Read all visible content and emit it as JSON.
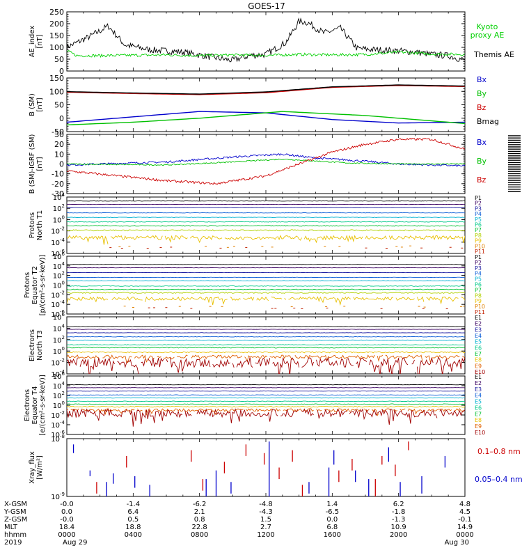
{
  "title": "GOES-17",
  "chart_data": [
    {
      "panel": "ae_index",
      "type": "line",
      "ylabel_lines": [
        "AE_index",
        "[nT]"
      ],
      "ylim": [
        0,
        250
      ],
      "yticks": [
        "0",
        "50",
        "100",
        "150",
        "200",
        "250"
      ],
      "legend": [
        {
          "text": "Kyoto",
          "color": "#00d000"
        },
        {
          "text": "proxy AE",
          "color": "#00d000"
        },
        {
          "text": "Themis AE",
          "color": "#000000"
        }
      ],
      "series": [
        {
          "name": "Themis AE",
          "color": "#000000",
          "kind": "noisy",
          "anchors": [
            [
              0,
              100
            ],
            [
              1.5,
              150
            ],
            [
              2.5,
              190
            ],
            [
              3.5,
              110
            ],
            [
              5,
              90
            ],
            [
              7,
              80
            ],
            [
              9,
              55
            ],
            [
              10,
              45
            ],
            [
              11,
              65
            ],
            [
              12,
              70
            ],
            [
              13.2,
              120
            ],
            [
              14,
              210
            ],
            [
              14.5,
              205
            ],
            [
              15.5,
              160
            ],
            [
              16.5,
              180
            ],
            [
              17.5,
              95
            ],
            [
              18.5,
              90
            ],
            [
              20,
              85
            ],
            [
              21,
              80
            ],
            [
              22,
              70
            ],
            [
              23,
              65
            ],
            [
              24,
              45
            ]
          ],
          "noise": 14
        },
        {
          "name": "Kyoto proxy AE",
          "color": "#00d000",
          "kind": "noisy",
          "anchors": [
            [
              0,
              85
            ],
            [
              0.6,
              65
            ],
            [
              2,
              65
            ],
            [
              6,
              68
            ],
            [
              8,
              65
            ],
            [
              10,
              68
            ],
            [
              12,
              66
            ],
            [
              14,
              70
            ],
            [
              16,
              68
            ],
            [
              18,
              70
            ],
            [
              20,
              80
            ],
            [
              22,
              72
            ],
            [
              24,
              70
            ]
          ],
          "noise": 6
        }
      ]
    },
    {
      "panel": "b_sm",
      "type": "line",
      "ylabel_lines": [
        "B (SM)",
        "[nT]"
      ],
      "ylim": [
        -50,
        150
      ],
      "yticks": [
        "-50",
        "0",
        "50",
        "100",
        "150"
      ],
      "legend": [
        {
          "text": "Bx",
          "color": "#0000cc"
        },
        {
          "text": "By",
          "color": "#00c000"
        },
        {
          "text": "Bz",
          "color": "#cc0000"
        },
        {
          "text": "Bmag",
          "color": "#000000"
        }
      ],
      "series": [
        {
          "name": "Bx",
          "color": "#0000cc",
          "kind": "smooth",
          "anchors": [
            [
              0,
              -15
            ],
            [
              4,
              5
            ],
            [
              8,
              25
            ],
            [
              12,
              20
            ],
            [
              16,
              -5
            ],
            [
              20,
              -18
            ],
            [
              24,
              -15
            ]
          ]
        },
        {
          "name": "By",
          "color": "#00c000",
          "kind": "smooth",
          "anchors": [
            [
              0,
              -25
            ],
            [
              4,
              -15
            ],
            [
              8,
              0
            ],
            [
              13,
              25
            ],
            [
              18,
              10
            ],
            [
              22,
              -10
            ],
            [
              24,
              -20
            ]
          ]
        },
        {
          "name": "Bz",
          "color": "#cc0000",
          "kind": "smooth",
          "anchors": [
            [
              0,
              97
            ],
            [
              4,
              92
            ],
            [
              8,
              88
            ],
            [
              12,
              95
            ],
            [
              16,
              115
            ],
            [
              20,
              122
            ],
            [
              24,
              118
            ]
          ]
        },
        {
          "name": "Bmag",
          "color": "#000000",
          "kind": "smooth",
          "anchors": [
            [
              0,
              99
            ],
            [
              4,
              94
            ],
            [
              8,
              90
            ],
            [
              12,
              98
            ],
            [
              16,
              117
            ],
            [
              20,
              124
            ],
            [
              24,
              120
            ]
          ]
        }
      ]
    },
    {
      "panel": "b_minus_igrf",
      "type": "line",
      "ylabel_lines": [
        "B (SM)-IGRF (SM)",
        "[nT]"
      ],
      "ylim": [
        -30,
        30
      ],
      "yticks": [
        "-30",
        "-20",
        "-10",
        "0",
        "10",
        "20",
        "30"
      ],
      "legend": [
        {
          "text": "Bx",
          "color": "#0000cc"
        },
        {
          "text": "By",
          "color": "#00c000"
        },
        {
          "text": "Bz",
          "color": "#cc0000"
        }
      ],
      "series": [
        {
          "name": "Bx",
          "color": "#0000cc",
          "kind": "noisy",
          "anchors": [
            [
              0,
              -1
            ],
            [
              6,
              2
            ],
            [
              10,
              7
            ],
            [
              13,
              10
            ],
            [
              15,
              6
            ],
            [
              17,
              4
            ],
            [
              20,
              0
            ],
            [
              22,
              -1
            ],
            [
              24,
              -2
            ]
          ],
          "noise": 1.0
        },
        {
          "name": "By",
          "color": "#00c000",
          "kind": "noisy",
          "anchors": [
            [
              0,
              0
            ],
            [
              6,
              -1
            ],
            [
              10,
              2
            ],
            [
              13,
              5
            ],
            [
              15,
              3
            ],
            [
              17,
              1
            ],
            [
              20,
              0
            ],
            [
              24,
              0
            ]
          ],
          "noise": 0.6
        },
        {
          "name": "Bz",
          "color": "#cc0000",
          "kind": "noisy",
          "anchors": [
            [
              0,
              -7
            ],
            [
              3,
              -12
            ],
            [
              6,
              -17
            ],
            [
              9,
              -20
            ],
            [
              12,
              -12
            ],
            [
              14,
              0
            ],
            [
              16,
              12
            ],
            [
              18,
              20
            ],
            [
              20,
              25
            ],
            [
              22,
              25
            ],
            [
              24,
              15
            ]
          ],
          "noise": 1.2
        }
      ]
    },
    {
      "panel": "protons_north_t1",
      "type": "line",
      "log_scale": true,
      "ylabel_lines": [
        "Protons",
        "North T1"
      ],
      "ylim_exp": [
        -6,
        4
      ],
      "ytick_exps": [
        4,
        2,
        0,
        -2,
        -4,
        -6
      ],
      "labels": [
        "P1",
        "P2",
        "P3",
        "P4",
        "P5",
        "P6",
        "P7",
        "P8",
        "P9",
        "P10",
        "P11"
      ],
      "colors": [
        "#000000",
        "#3a0060",
        "#1a1aa0",
        "#1060d8",
        "#00b0d0",
        "#00c888",
        "#00c030",
        "#b0d000",
        "#e8c000",
        "#e08000",
        "#c02000"
      ],
      "levels_exp": [
        3.3,
        2.7,
        2.1,
        1.2,
        0.4,
        -0.4,
        -1.1,
        -1.9,
        -3.2,
        -4.8,
        -5.0
      ],
      "noise_dex": [
        0.03,
        0.03,
        0.03,
        0.03,
        0.04,
        0.05,
        0.08,
        0.12,
        0.35,
        0.0,
        0.0
      ]
    },
    {
      "panel": "protons_equator_t2",
      "type": "line",
      "log_scale": true,
      "ylabel_lines": [
        "Protons",
        "Equator T2",
        "[p/(cm²-s-sr-keV)]"
      ],
      "ylim_exp": [
        -6,
        6
      ],
      "ytick_exps": [
        6,
        4,
        2,
        0,
        -2,
        -4,
        -6
      ],
      "labels": [
        "P1",
        "P2",
        "P3",
        "P4",
        "P5",
        "P6",
        "P7",
        "P8",
        "P9",
        "P10",
        "P11"
      ],
      "colors": [
        "#000000",
        "#3a0060",
        "#1a1aa0",
        "#1060d8",
        "#00b0d0",
        "#00c888",
        "#00c030",
        "#b0d000",
        "#e8c000",
        "#e08000",
        "#c02000"
      ],
      "levels_exp": [
        4.3,
        3.6,
        2.6,
        1.6,
        0.9,
        -0.2,
        -0.9,
        -1.6,
        -2.8,
        -4.5,
        -4.8
      ],
      "noise_dex": [
        0.03,
        0.03,
        0.03,
        0.04,
        0.05,
        0.06,
        0.08,
        0.12,
        0.35,
        0.0,
        0.0
      ]
    },
    {
      "panel": "electrons_north_t3",
      "type": "line",
      "log_scale": true,
      "ylabel_lines": [
        "Electrons",
        "North T3"
      ],
      "ylim_exp": [
        -4,
        6
      ],
      "ytick_exps": [
        6,
        4,
        2,
        0,
        -2,
        -4
      ],
      "labels": [
        "E1",
        "E2",
        "E3",
        "E4",
        "E5",
        "E6",
        "E7",
        "E8",
        "E9",
        "E10"
      ],
      "colors": [
        "#000000",
        "#3a0060",
        "#1a1aa0",
        "#1060d8",
        "#00b0d0",
        "#00c888",
        "#00c030",
        "#e8c000",
        "#e06000",
        "#a00000"
      ],
      "levels_exp": [
        4.3,
        3.8,
        3.2,
        2.5,
        1.9,
        1.1,
        0.6,
        -0.2,
        -1.0,
        -2.0
      ],
      "noise_dex": [
        0.03,
        0.03,
        0.03,
        0.04,
        0.05,
        0.06,
        0.08,
        0.12,
        0.3,
        0.9
      ]
    },
    {
      "panel": "electrons_equator_t4",
      "type": "line",
      "log_scale": true,
      "ylabel_lines": [
        "Electrons",
        "Equator T4",
        "[e/(cm²-s-sr-keV)]"
      ],
      "ylim_exp": [
        -6,
        6
      ],
      "ytick_exps": [
        6,
        4,
        2,
        0,
        -2,
        -4,
        -6
      ],
      "labels": [
        "E1",
        "E2",
        "E3",
        "E4",
        "E5",
        "E6",
        "E7",
        "E8",
        "E9",
        "E10"
      ],
      "colors": [
        "#000000",
        "#3a0060",
        "#1a1aa0",
        "#1060d8",
        "#00b0d0",
        "#00c888",
        "#00c030",
        "#e8c000",
        "#e06000",
        "#a00000"
      ],
      "levels_exp": [
        4.2,
        3.6,
        2.9,
        2.1,
        1.5,
        0.8,
        0.2,
        -0.3,
        -1.0,
        -1.6
      ],
      "noise_dex": [
        0.03,
        0.03,
        0.03,
        0.04,
        0.05,
        0.06,
        0.08,
        0.12,
        0.3,
        0.8
      ]
    },
    {
      "panel": "xray_flux",
      "type": "scatter",
      "log_scale": true,
      "ylabel_lines": [
        "Xray_flux",
        "[W/m²]"
      ],
      "ylim_exp": [
        -9,
        -8
      ],
      "ytick_exps": [
        -8,
        -9
      ],
      "legend": [
        {
          "text": "0.1–0.8 nm",
          "color": "#cc0000"
        },
        {
          "text": "0.05–0.4 nm",
          "color": "#0000cc"
        }
      ],
      "series": [
        {
          "name": "0.1–0.8 nm",
          "color": "#cc0000",
          "segments": [
            [
              1.8,
              0.05,
              0.25
            ],
            [
              3.6,
              0.5,
              0.7
            ],
            [
              7.5,
              0.6,
              0.8
            ],
            [
              8.2,
              0.1,
              0.3
            ],
            [
              9.5,
              0.4,
              0.6
            ],
            [
              10.8,
              0.7,
              0.9
            ],
            [
              11.9,
              0.55,
              0.75
            ],
            [
              12.8,
              0.3,
              0.5
            ],
            [
              13.6,
              0.6,
              0.8
            ],
            [
              14.2,
              0.0,
              0.2
            ],
            [
              16.4,
              0.25,
              0.45
            ],
            [
              17.2,
              0.45,
              0.65
            ],
            [
              18.6,
              0.0,
              0.3
            ],
            [
              19.0,
              0.55,
              0.7
            ],
            [
              19.8,
              0.35,
              0.55
            ],
            [
              20.6,
              0.8,
              0.95
            ]
          ]
        },
        {
          "name": "0.05–0.4 nm",
          "color": "#0000cc",
          "segments": [
            [
              0.4,
              0.75,
              0.9
            ],
            [
              1.4,
              0.35,
              0.45
            ],
            [
              2.4,
              0.0,
              0.25
            ],
            [
              2.8,
              0.22,
              0.4
            ],
            [
              4.1,
              0.15,
              0.35
            ],
            [
              5.0,
              0.0,
              0.2
            ],
            [
              8.4,
              0.0,
              0.3
            ],
            [
              9.0,
              0.0,
              0.45
            ],
            [
              9.9,
              0.05,
              0.25
            ],
            [
              12.2,
              0.0,
              0.95
            ],
            [
              14.6,
              0.05,
              0.25
            ],
            [
              15.8,
              0.0,
              0.5
            ],
            [
              16.1,
              0.55,
              0.8
            ],
            [
              17.4,
              0.25,
              0.45
            ],
            [
              18.2,
              0.0,
              0.3
            ],
            [
              19.4,
              0.6,
              0.85
            ],
            [
              20.1,
              0.0,
              0.25
            ],
            [
              21.4,
              0.05,
              0.35
            ],
            [
              22.8,
              0.5,
              0.7
            ]
          ]
        }
      ]
    }
  ],
  "xaxis": {
    "row_labels": [
      "X-GSM",
      "Y-GSM",
      "Z-GSM",
      "MLT",
      "hhmm",
      "2019"
    ],
    "columns": [
      {
        "hour": 0,
        "values": [
          "-0.0",
          "0.0",
          "-0.0",
          "18.4",
          "0000",
          "Aug 29"
        ]
      },
      {
        "hour": 4,
        "values": [
          "-1.4",
          "6.4",
          "0.5",
          "18.8",
          "0400",
          ""
        ]
      },
      {
        "hour": 8,
        "values": [
          "-6.2",
          "2.1",
          "0.8",
          "22.8",
          "0800",
          ""
        ]
      },
      {
        "hour": 12,
        "values": [
          "-4.8",
          "-4.3",
          "1.5",
          "2.7",
          "1200",
          ""
        ]
      },
      {
        "hour": 16,
        "values": [
          "1.4",
          "-6.5",
          "0.0",
          "6.8",
          "1600",
          ""
        ]
      },
      {
        "hour": 20,
        "values": [
          "6.2",
          "-1.8",
          "-1.3",
          "10.9",
          "2000",
          ""
        ]
      },
      {
        "hour": 24,
        "values": [
          "4.8",
          "4.5",
          "-0.1",
          "14.9",
          "0000",
          "Aug 30"
        ]
      }
    ]
  }
}
